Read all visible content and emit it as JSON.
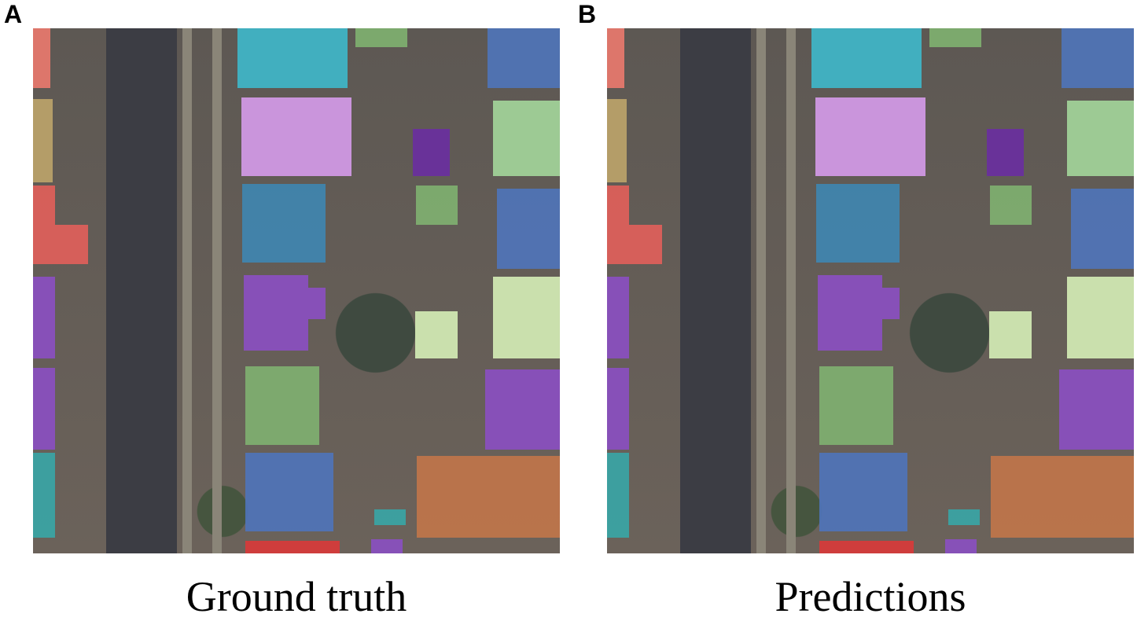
{
  "panels": [
    {
      "label": "A",
      "caption": "Ground truth"
    },
    {
      "label": "B",
      "caption": "Predictions"
    }
  ],
  "colors": {
    "salmon": "#e8786e",
    "tan": "#bca36a",
    "red": "#e0605a",
    "purple": "#8a4fc0",
    "teal": "#3aa5a5",
    "cyan": "#3fb6c9",
    "green": "#7fb070",
    "blue": "#4f74b8",
    "lavender": "#d49ae8",
    "darkpurple": "#6a2fa0",
    "lightgreen": "#a3d49a",
    "steelblue": "#3f85b0",
    "palegreen": "#d2ecb4",
    "orange": "#c0754a",
    "brightred": "#d83a3a"
  }
}
